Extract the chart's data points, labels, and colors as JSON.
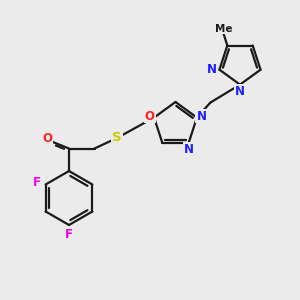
{
  "background_color": "#ebebeb",
  "bond_color": "#1a1a1a",
  "atom_colors": {
    "N": "#2020ff",
    "O": "#ff2020",
    "S": "#cccc00",
    "F": "#ee00ee",
    "C": "#1a1a1a"
  },
  "figsize": [
    3.0,
    3.0
  ],
  "dpi": 100,
  "lw": 1.6,
  "fs": 8.5
}
